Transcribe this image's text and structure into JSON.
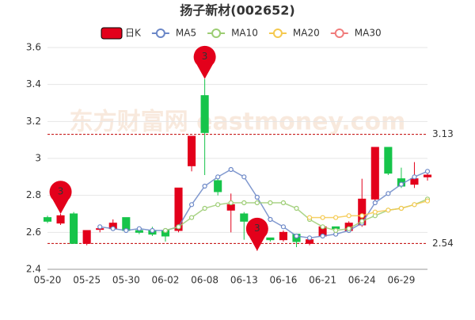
{
  "chart_data": {
    "type": "candlestick",
    "title": "扬子新材(002652)",
    "watermark": "东方财富网 eastmoney.com",
    "categories": [
      "05-20",
      null,
      null,
      "05-25",
      null,
      null,
      "05-30",
      null,
      null,
      "06-02",
      null,
      null,
      "06-08",
      null,
      null,
      "06-13",
      null,
      null,
      "06-16",
      null,
      null,
      "06-21",
      null,
      null,
      "06-24",
      null,
      null,
      "06-29",
      null,
      null
    ],
    "series": [
      {
        "name": "日K",
        "up_color": "#e3001b",
        "down_color": "#16c44a",
        "open": [
          2.68,
          2.65,
          2.7,
          2.54,
          2.62,
          2.62,
          2.68,
          2.61,
          2.61,
          2.61,
          2.61,
          2.96,
          3.34,
          2.88,
          2.72,
          2.7,
          2.57,
          2.57,
          2.56,
          2.59,
          2.54,
          2.58,
          2.63,
          2.61,
          2.64,
          2.78,
          3.06,
          2.89,
          2.86,
          2.9
        ],
        "close": [
          2.66,
          2.69,
          2.54,
          2.61,
          2.62,
          2.65,
          2.61,
          2.6,
          2.59,
          2.58,
          2.84,
          3.12,
          3.14,
          2.82,
          2.75,
          2.66,
          2.61,
          2.56,
          2.6,
          2.55,
          2.56,
          2.63,
          2.62,
          2.65,
          2.78,
          3.06,
          2.92,
          2.85,
          2.89,
          2.91
        ],
        "high": [
          2.69,
          2.7,
          2.71,
          2.61,
          2.63,
          2.67,
          2.68,
          2.62,
          2.63,
          2.62,
          2.84,
          3.12,
          3.43,
          2.89,
          2.81,
          2.71,
          2.62,
          2.57,
          2.61,
          2.59,
          2.57,
          2.63,
          2.63,
          2.66,
          2.89,
          3.06,
          3.06,
          2.95,
          2.98,
          2.92
        ],
        "low": [
          2.65,
          2.64,
          2.54,
          2.53,
          2.6,
          2.61,
          2.6,
          2.59,
          2.58,
          2.55,
          2.6,
          2.93,
          2.91,
          2.8,
          2.6,
          2.56,
          2.5,
          2.55,
          2.55,
          2.52,
          2.53,
          2.57,
          2.62,
          2.6,
          2.63,
          2.77,
          2.91,
          2.84,
          2.84,
          2.88
        ]
      },
      {
        "name": "MA5",
        "color": "#6b87c7",
        "values": [
          null,
          null,
          null,
          null,
          2.63,
          2.62,
          2.61,
          2.62,
          2.61,
          2.61,
          2.63,
          2.75,
          2.85,
          2.9,
          2.94,
          2.9,
          2.79,
          2.67,
          2.63,
          2.58,
          2.57,
          2.58,
          2.59,
          2.61,
          2.65,
          2.76,
          2.81,
          2.86,
          2.9,
          2.93
        ]
      },
      {
        "name": "MA10",
        "color": "#9ccd73",
        "values": [
          null,
          null,
          null,
          null,
          null,
          null,
          null,
          null,
          null,
          2.61,
          2.63,
          2.68,
          2.73,
          2.75,
          2.76,
          2.76,
          2.76,
          2.76,
          2.76,
          2.73,
          2.67,
          2.63,
          2.61,
          2.62,
          2.66,
          2.69,
          2.72,
          2.73,
          2.75,
          2.78
        ]
      },
      {
        "name": "MA20",
        "color": "#f5c94f",
        "values": [
          null,
          null,
          null,
          null,
          null,
          null,
          null,
          null,
          null,
          null,
          null,
          null,
          null,
          null,
          null,
          null,
          null,
          null,
          null,
          null,
          2.68,
          2.68,
          2.68,
          2.69,
          2.69,
          2.71,
          2.72,
          2.73,
          2.75,
          2.77
        ]
      },
      {
        "name": "MA30",
        "color": "#f07c7c",
        "values": [
          null,
          null,
          null,
          null,
          null,
          null,
          null,
          null,
          null,
          null,
          null,
          null,
          null,
          null,
          null,
          null,
          null,
          null,
          null,
          null,
          null,
          null,
          null,
          null,
          null,
          null,
          null,
          null,
          null,
          null
        ]
      }
    ],
    "ylim": [
      2.4,
      3.6
    ],
    "yticks": [
      2.4,
      2.6,
      2.8,
      3,
      3.2,
      3.4,
      3.6
    ],
    "grid": true,
    "ref_lines": [
      3.13,
      2.54
    ],
    "ref_color": "#c00000",
    "pins": [
      {
        "index": 1,
        "value": 2.7,
        "label": "3"
      },
      {
        "index": 12,
        "value": 3.43,
        "label": "3"
      },
      {
        "index": 16,
        "value": 2.5,
        "label": "3"
      }
    ],
    "pin_color": "#e3001b"
  }
}
